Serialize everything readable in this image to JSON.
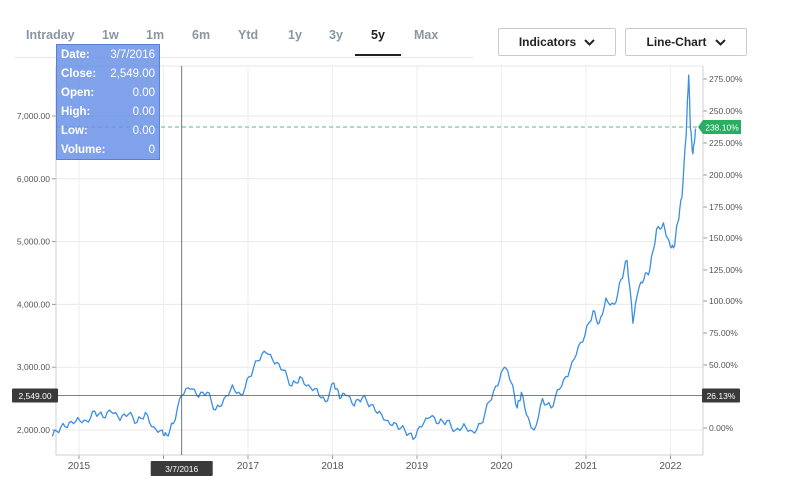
{
  "range_tabs": [
    {
      "label": "Intraday",
      "active": false
    },
    {
      "label": "1w",
      "active": false
    },
    {
      "label": "1m",
      "active": false
    },
    {
      "label": "6m",
      "active": false
    },
    {
      "label": "Ytd",
      "active": false
    },
    {
      "label": "1y",
      "active": false
    },
    {
      "label": "3y",
      "active": false
    },
    {
      "label": "5y",
      "active": true
    },
    {
      "label": "Max",
      "active": false
    }
  ],
  "controls": {
    "indicators_label": "Indicators",
    "indicators_icon": "chevron-down-icon",
    "chart_type_label": "Line-Chart",
    "chart_type_icon": "chevron-down-icon"
  },
  "tooltip": {
    "date_label": "Date:",
    "date_value": "3/7/2016",
    "close_label": "Close:",
    "close_value": "2,549.00",
    "open_label": "Open:",
    "open_value": "0.00",
    "high_label": "High:",
    "high_value": "0.00",
    "low_label": "Low:",
    "low_value": "0.00",
    "volume_label": "Volume:",
    "volume_value": "0"
  },
  "crosshair": {
    "date_badge": "3/7/2016",
    "price_badge": "2,549.00",
    "percent_badge": "26.13%"
  },
  "last_value_badge": "238.10%",
  "colors": {
    "line": "#3a8ee6",
    "last_value_badge": "#27ae60",
    "last_value_line": "#52be80",
    "crosshair_badge": "#3a3a3a",
    "tooltip_bg": "#648de5",
    "active_tab": "#222222",
    "inactive_tab": "#8a96a3"
  },
  "chart_data": {
    "type": "line",
    "x_labels": [
      "2015",
      "2016",
      "2017",
      "2018",
      "2019",
      "2020",
      "2021",
      "2022"
    ],
    "y_left_ticks": [
      "7,000.00",
      "6,000.00",
      "5,000.00",
      "4,000.00",
      "3,000.00",
      "2,000.00"
    ],
    "y_right_ticks": [
      "275.00%",
      "250.00%",
      "225.00%",
      "200.00%",
      "175.00%",
      "150.00%",
      "125.00%",
      "100.00%",
      "75.00%",
      "50.00%",
      "0.00%"
    ],
    "ylim_left": [
      1800,
      7800
    ],
    "series": [
      {
        "values": [
          [
            "2014.65",
            1900
          ],
          [
            "2014.75",
            2050
          ],
          [
            "2014.85",
            2120
          ],
          [
            "2014.95",
            2200
          ],
          [
            "2015.05",
            2150
          ],
          [
            "2015.15",
            2300
          ],
          [
            "2015.25",
            2200
          ],
          [
            "2015.35",
            2280
          ],
          [
            "2015.45",
            2150
          ],
          [
            "2015.55",
            2250
          ],
          [
            "2015.65",
            2120
          ],
          [
            "2015.75",
            2280
          ],
          [
            "2015.85",
            2050
          ],
          [
            "2015.95",
            2000
          ],
          [
            "2016.0",
            1920
          ],
          [
            "2016.08",
            2100
          ],
          [
            "2016.18",
            2549
          ],
          [
            "2016.28",
            2650
          ],
          [
            "2016.38",
            2520
          ],
          [
            "2016.48",
            2600
          ],
          [
            "2016.58",
            2320
          ],
          [
            "2016.68",
            2500
          ],
          [
            "2016.78",
            2720
          ],
          [
            "2016.88",
            2560
          ],
          [
            "2016.98",
            2850
          ],
          [
            "2017.08",
            3100
          ],
          [
            "2017.18",
            3230
          ],
          [
            "2017.28",
            3050
          ],
          [
            "2017.38",
            2950
          ],
          [
            "2017.48",
            2700
          ],
          [
            "2017.58",
            2850
          ],
          [
            "2017.68",
            2720
          ],
          [
            "2017.78",
            2660
          ],
          [
            "2017.88",
            2450
          ],
          [
            "2017.98",
            2750
          ],
          [
            "2018.05",
            2500
          ],
          [
            "2018.12",
            2550
          ],
          [
            "2018.22",
            2380
          ],
          [
            "2018.32",
            2520
          ],
          [
            "2018.42",
            2400
          ],
          [
            "2018.52",
            2300
          ],
          [
            "2018.62",
            2150
          ],
          [
            "2018.72",
            2100
          ],
          [
            "2018.82",
            2000
          ],
          [
            "2018.92",
            1850
          ],
          [
            "2019.02",
            2050
          ],
          [
            "2019.12",
            2200
          ],
          [
            "2019.22",
            2100
          ],
          [
            "2019.32",
            2150
          ],
          [
            "2019.42",
            2000
          ],
          [
            "2019.52",
            2100
          ],
          [
            "2019.62",
            1980
          ],
          [
            "2019.72",
            2100
          ],
          [
            "2019.82",
            2450
          ],
          [
            "2019.92",
            2700
          ],
          [
            "2020.0",
            3000
          ],
          [
            "2020.08",
            2750
          ],
          [
            "2020.15",
            2350
          ],
          [
            "2020.2",
            2600
          ],
          [
            "2020.28",
            2200
          ],
          [
            "2020.35",
            2000
          ],
          [
            "2020.45",
            2500
          ],
          [
            "2020.55",
            2350
          ],
          [
            "2020.65",
            2650
          ],
          [
            "2020.75",
            2850
          ],
          [
            "2020.85",
            3200
          ],
          [
            "2020.95",
            3500
          ],
          [
            "2021.05",
            3900
          ],
          [
            "2021.12",
            3700
          ],
          [
            "2021.2",
            4100
          ],
          [
            "2021.3",
            4000
          ],
          [
            "2021.38",
            4400
          ],
          [
            "2021.45",
            4700
          ],
          [
            "2021.52",
            3700
          ],
          [
            "2021.58",
            4200
          ],
          [
            "2021.65",
            4400
          ],
          [
            "2021.72",
            4550
          ],
          [
            "2021.8",
            5200
          ],
          [
            "2021.88",
            5300
          ],
          [
            "2021.95",
            5000
          ],
          [
            "2022.0",
            4900
          ],
          [
            "2022.05",
            5300
          ],
          [
            "2022.1",
            5700
          ],
          [
            "2022.15",
            6700
          ],
          [
            "2022.18",
            7650
          ],
          [
            "2022.2",
            6800
          ],
          [
            "2022.23",
            6400
          ],
          [
            "2022.26",
            6800
          ]
        ]
      }
    ],
    "x_range": [
      "2014.65",
      "2022.27"
    ],
    "grid": true
  }
}
